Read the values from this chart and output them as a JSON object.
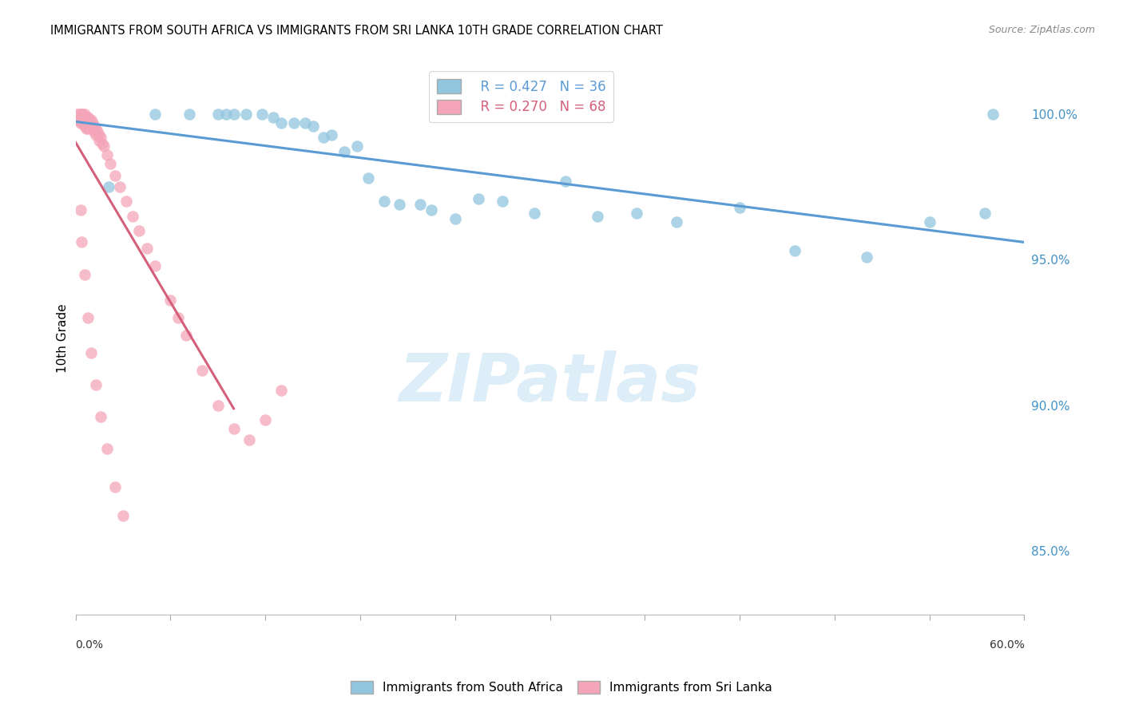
{
  "title": "IMMIGRANTS FROM SOUTH AFRICA VS IMMIGRANTS FROM SRI LANKA 10TH GRADE CORRELATION CHART",
  "source": "Source: ZipAtlas.com",
  "ylabel": "10th Grade",
  "yaxis_labels": [
    "100.0%",
    "95.0%",
    "90.0%",
    "85.0%"
  ],
  "yaxis_values": [
    1.0,
    0.95,
    0.9,
    0.85
  ],
  "xmin": 0.0,
  "xmax": 0.6,
  "ymin": 0.828,
  "ymax": 1.018,
  "legend_blue_r": "R = 0.427",
  "legend_blue_n": "N = 36",
  "legend_pink_r": "R = 0.270",
  "legend_pink_n": "N = 68",
  "blue_color": "#92c5de",
  "pink_color": "#f4a6b8",
  "blue_line_color": "#5b9bd5",
  "pink_line_color": "#d45f7a",
  "watermark_color": "#ddeef8",
  "south_africa_x": [
    0.021,
    0.05,
    0.072,
    0.09,
    0.095,
    0.1,
    0.108,
    0.118,
    0.125,
    0.13,
    0.138,
    0.145,
    0.15,
    0.157,
    0.162,
    0.17,
    0.178,
    0.185,
    0.195,
    0.205,
    0.218,
    0.225,
    0.24,
    0.255,
    0.27,
    0.29,
    0.31,
    0.33,
    0.355,
    0.38,
    0.42,
    0.455,
    0.5,
    0.54,
    0.575,
    0.58
  ],
  "south_africa_y": [
    0.975,
    1.0,
    1.0,
    1.0,
    1.0,
    1.0,
    1.0,
    1.0,
    0.999,
    0.997,
    0.997,
    0.997,
    0.996,
    0.992,
    0.993,
    0.987,
    0.989,
    0.978,
    0.97,
    0.969,
    0.969,
    0.967,
    0.964,
    0.971,
    0.97,
    0.966,
    0.977,
    0.965,
    0.966,
    0.963,
    0.968,
    0.953,
    0.951,
    0.963,
    0.966,
    1.0
  ],
  "sri_lanka_x": [
    0.001,
    0.001,
    0.001,
    0.002,
    0.002,
    0.002,
    0.003,
    0.003,
    0.003,
    0.004,
    0.004,
    0.004,
    0.005,
    0.005,
    0.005,
    0.006,
    0.006,
    0.006,
    0.007,
    0.007,
    0.007,
    0.008,
    0.008,
    0.008,
    0.009,
    0.009,
    0.01,
    0.01,
    0.011,
    0.011,
    0.012,
    0.012,
    0.013,
    0.013,
    0.014,
    0.015,
    0.015,
    0.016,
    0.017,
    0.018,
    0.02,
    0.022,
    0.025,
    0.028,
    0.032,
    0.036,
    0.04,
    0.045,
    0.05,
    0.06,
    0.065,
    0.07,
    0.08,
    0.09,
    0.1,
    0.11,
    0.12,
    0.13,
    0.003,
    0.004,
    0.006,
    0.008,
    0.01,
    0.013,
    0.016,
    0.02,
    0.025,
    0.03
  ],
  "sri_lanka_y": [
    1.0,
    0.999,
    0.998,
    1.0,
    0.999,
    0.998,
    1.0,
    0.999,
    0.997,
    1.0,
    0.999,
    0.997,
    1.0,
    0.999,
    0.997,
    1.0,
    0.998,
    0.996,
    0.999,
    0.997,
    0.995,
    0.999,
    0.997,
    0.995,
    0.998,
    0.996,
    0.998,
    0.996,
    0.997,
    0.995,
    0.996,
    0.994,
    0.995,
    0.993,
    0.994,
    0.993,
    0.991,
    0.992,
    0.99,
    0.989,
    0.986,
    0.983,
    0.979,
    0.975,
    0.97,
    0.965,
    0.96,
    0.954,
    0.948,
    0.936,
    0.93,
    0.924,
    0.912,
    0.9,
    0.892,
    0.888,
    0.895,
    0.905,
    0.967,
    0.956,
    0.945,
    0.93,
    0.918,
    0.907,
    0.896,
    0.885,
    0.872,
    0.862
  ]
}
